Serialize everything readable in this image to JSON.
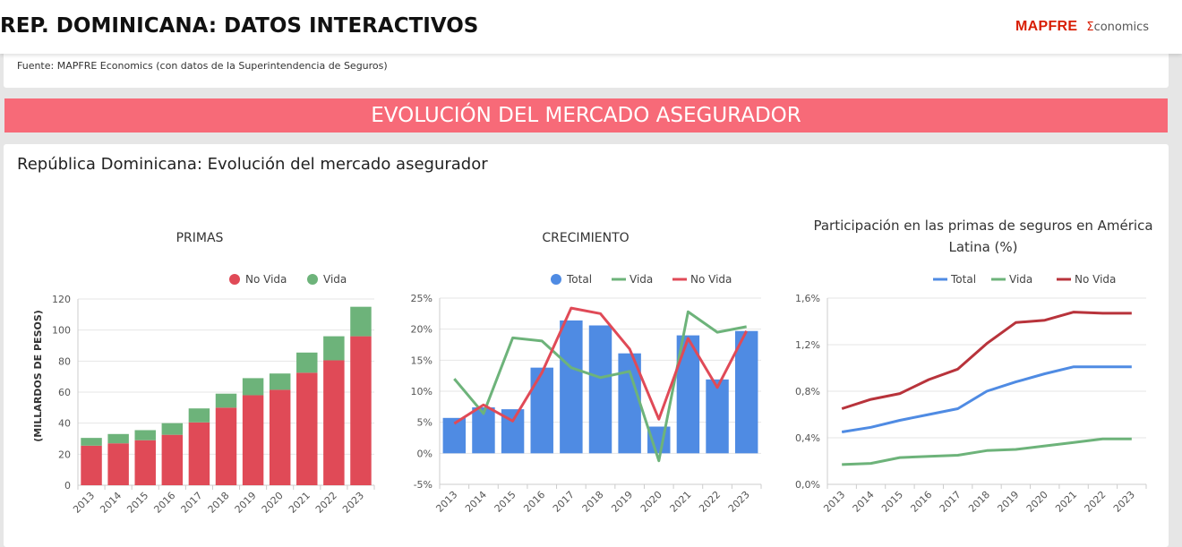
{
  "header": {
    "title": "REP. DOMINICANA: DATOS INTERACTIVOS",
    "logo_brand": "MAPFRE",
    "logo_sigma": "Σ",
    "logo_suffix": "conomics"
  },
  "source": "Fuente: MAPFRE Economics (con datos de la Superintendencia de Seguros)",
  "banner": "EVOLUCIÓN DEL MERCADO ASEGURADOR",
  "card_title": "República Dominicana: Evolución del mercado asegurador",
  "colors": {
    "no_vida": "#e04a57",
    "vida": "#6db37a",
    "total": "#4f8be3",
    "no_vida_line": "#b8333b",
    "banner": "#f76a78"
  },
  "chart_data": [
    {
      "type": "bar",
      "stacked": true,
      "title": "PRIMAS",
      "ylabel": "(MILLARDOS DE PESOS)",
      "ylim": [
        0,
        120
      ],
      "yticks": [
        0,
        20,
        40,
        60,
        80,
        100,
        120
      ],
      "ytick_labels": [
        "0",
        "20",
        "40",
        "60",
        "80",
        "100",
        "120"
      ],
      "legend": "top-right",
      "grid": true,
      "categories": [
        "2013",
        "2014",
        "2015",
        "2016",
        "2017",
        "2018",
        "2019",
        "2020",
        "2021",
        "2022",
        "2023"
      ],
      "series": [
        {
          "name": "No Vida",
          "color": "#e04a57",
          "values": [
            25.5,
            27,
            29,
            32.5,
            40.5,
            50,
            58,
            61.5,
            72.5,
            80.5,
            96
          ]
        },
        {
          "name": "Vida",
          "color": "#6db37a",
          "values": [
            5,
            6,
            6.5,
            7.5,
            9,
            9,
            11,
            10.5,
            13,
            15.5,
            19
          ]
        }
      ]
    },
    {
      "type": "bar+line",
      "title": "CRECIMIENTO",
      "ylim": [
        -5,
        25
      ],
      "yticks": [
        -5,
        0,
        5,
        10,
        15,
        20,
        25
      ],
      "ytick_labels": [
        "-5%",
        "0%",
        "5%",
        "10%",
        "15%",
        "20%",
        "25%"
      ],
      "legend": "top-right",
      "grid": true,
      "categories": [
        "2013",
        "2014",
        "2015",
        "2016",
        "2017",
        "2018",
        "2019",
        "2020",
        "2021",
        "2022",
        "2023"
      ],
      "series": [
        {
          "name": "Total",
          "type": "bar",
          "color": "#4f8be3",
          "values": [
            5.7,
            7.4,
            7.1,
            13.8,
            21.4,
            20.6,
            16.1,
            4.3,
            19.0,
            11.9,
            19.7
          ]
        },
        {
          "name": "Vida",
          "type": "line",
          "color": "#6db37a",
          "values": [
            12.0,
            6.4,
            18.6,
            18.1,
            13.8,
            12.2,
            13.2,
            -1.2,
            22.8,
            19.5,
            20.4
          ]
        },
        {
          "name": "No Vida",
          "type": "line",
          "color": "#e04a57",
          "values": [
            4.8,
            7.8,
            5.2,
            13.0,
            23.4,
            22.5,
            16.8,
            5.5,
            18.5,
            10.6,
            19.7
          ]
        }
      ]
    },
    {
      "type": "line",
      "title": "Participación en las primas de seguros en América Latina (%)",
      "title_lines": [
        "Participación en las primas de seguros en América",
        "Latina (%)"
      ],
      "ylim": [
        0,
        1.6
      ],
      "yticks": [
        0,
        0.4,
        0.8,
        1.2,
        1.6
      ],
      "ytick_labels": [
        "0,0%",
        "0,4%",
        "0,8%",
        "1,2%",
        "1,6%"
      ],
      "legend": "top-right",
      "grid": true,
      "categories": [
        "2013",
        "2014",
        "2015",
        "2016",
        "2017",
        "2018",
        "2019",
        "2020",
        "2021",
        "2022",
        "2023"
      ],
      "series": [
        {
          "name": "Total",
          "color": "#4f8be3",
          "values": [
            0.45,
            0.49,
            0.55,
            0.6,
            0.65,
            0.8,
            0.88,
            0.95,
            1.01,
            1.01,
            1.01
          ]
        },
        {
          "name": "Vida",
          "color": "#6db37a",
          "values": [
            0.17,
            0.18,
            0.23,
            0.24,
            0.25,
            0.29,
            0.3,
            0.33,
            0.36,
            0.39,
            0.39
          ]
        },
        {
          "name": "No Vida",
          "color": "#b8333b",
          "values": [
            0.65,
            0.73,
            0.78,
            0.9,
            0.99,
            1.21,
            1.39,
            1.41,
            1.48,
            1.47,
            1.47
          ]
        }
      ]
    }
  ]
}
